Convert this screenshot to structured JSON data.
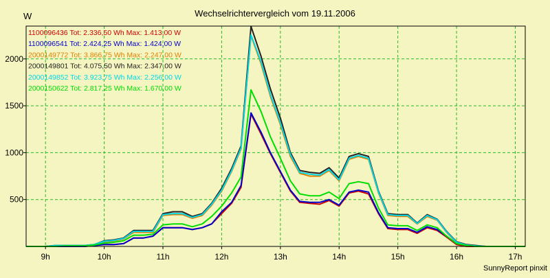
{
  "chart_data": {
    "type": "line",
    "title": "Wechselrichtervergleich vom 19.11.2006",
    "ylabel": "W",
    "xlabel": "",
    "footer": "SunnyReport pinxit",
    "xlim": [
      8.67,
      17.17
    ],
    "ylim": [
      0,
      2350
    ],
    "grid": true,
    "legend_position": "top-left",
    "x_ticks": [
      9,
      10,
      11,
      12,
      13,
      14,
      15,
      16,
      17
    ],
    "x_tick_labels": [
      "9h",
      "10h",
      "11h",
      "12h",
      "13h",
      "14h",
      "15h",
      "16h",
      "17h"
    ],
    "y_ticks": [
      500,
      1000,
      1500,
      2000
    ],
    "y_tick_labels": [
      "500",
      "1000",
      "1500",
      "2000"
    ],
    "x": [
      8.67,
      9.0,
      9.17,
      9.33,
      9.5,
      9.67,
      9.83,
      10.0,
      10.17,
      10.33,
      10.5,
      10.67,
      10.83,
      11.0,
      11.17,
      11.33,
      11.5,
      11.67,
      11.83,
      12.0,
      12.17,
      12.33,
      12.5,
      12.67,
      12.83,
      13.0,
      13.17,
      13.33,
      13.5,
      13.67,
      13.83,
      14.0,
      14.17,
      14.33,
      14.5,
      14.67,
      14.83,
      15.0,
      15.17,
      15.33,
      15.5,
      15.67,
      15.83,
      16.0,
      16.17,
      16.33,
      16.5,
      16.67,
      16.83,
      17.0,
      17.17
    ],
    "series": [
      {
        "name": "1100096436 Tot: 2.336,50 Wh Max: 1.413,00 W",
        "color": "#cc0000",
        "values": [
          0,
          0,
          0,
          0,
          0,
          0,
          10,
          20,
          20,
          30,
          90,
          90,
          110,
          200,
          200,
          200,
          180,
          200,
          240,
          350,
          460,
          630,
          1413,
          1200,
          990,
          790,
          590,
          470,
          460,
          450,
          490,
          430,
          570,
          590,
          560,
          350,
          190,
          180,
          180,
          140,
          200,
          170,
          100,
          20,
          0,
          0,
          0,
          0,
          0,
          0,
          0
        ]
      },
      {
        "name": "1100096541 Tot: 2.424,25 Wh Max: 1.424,00 W",
        "color": "#0000cc",
        "values": [
          0,
          0,
          0,
          0,
          0,
          0,
          10,
          20,
          20,
          30,
          90,
          90,
          110,
          200,
          200,
          200,
          180,
          200,
          240,
          370,
          470,
          650,
          1424,
          1220,
          1000,
          800,
          600,
          480,
          470,
          470,
          500,
          440,
          580,
          600,
          580,
          360,
          200,
          190,
          190,
          150,
          210,
          180,
          110,
          30,
          10,
          0,
          0,
          0,
          0,
          0,
          0
        ]
      },
      {
        "name": "2000149772 Tot: 3.866,75 Wh Max: 2.247,00 W",
        "color": "#e08000",
        "values": [
          0,
          0,
          10,
          10,
          10,
          10,
          20,
          50,
          60,
          80,
          150,
          150,
          150,
          330,
          340,
          340,
          300,
          330,
          440,
          590,
          800,
          1040,
          2247,
          1950,
          1600,
          1300,
          960,
          780,
          750,
          750,
          810,
          700,
          930,
          960,
          930,
          570,
          330,
          320,
          320,
          240,
          320,
          280,
          150,
          40,
          10,
          0,
          0,
          0,
          0,
          0,
          0
        ]
      },
      {
        "name": "2000149801 Tot: 4.075,50 Wh Max: 2.347,00 W",
        "color": "#222222",
        "values": [
          0,
          0,
          10,
          10,
          10,
          10,
          20,
          60,
          70,
          90,
          170,
          170,
          170,
          350,
          370,
          370,
          320,
          350,
          460,
          620,
          830,
          1070,
          2347,
          2030,
          1680,
          1370,
          1000,
          810,
          790,
          780,
          840,
          730,
          960,
          990,
          960,
          590,
          350,
          340,
          340,
          250,
          340,
          290,
          160,
          50,
          20,
          10,
          0,
          0,
          0,
          0,
          0
        ]
      },
      {
        "name": "2000149852 Tot: 3.923,75 Wh Max: 2.256,00 W",
        "color": "#00d8e8",
        "values": [
          0,
          0,
          10,
          10,
          10,
          10,
          20,
          55,
          65,
          85,
          160,
          160,
          160,
          340,
          350,
          350,
          310,
          340,
          450,
          600,
          810,
          1050,
          2256,
          1970,
          1620,
          1320,
          980,
          790,
          770,
          760,
          820,
          710,
          940,
          970,
          940,
          580,
          340,
          330,
          330,
          245,
          330,
          285,
          155,
          45,
          15,
          5,
          0,
          0,
          0,
          0,
          0
        ]
      },
      {
        "name": "2000150622 Tot: 2.817,25 Wh Max: 1.670,00 W",
        "color": "#00dd00",
        "values": [
          0,
          0,
          0,
          5,
          5,
          5,
          15,
          35,
          45,
          60,
          120,
          120,
          130,
          230,
          240,
          240,
          210,
          240,
          320,
          430,
          570,
          740,
          1670,
          1440,
          1170,
          940,
          700,
          560,
          540,
          540,
          580,
          510,
          670,
          690,
          670,
          410,
          230,
          220,
          220,
          170,
          230,
          200,
          110,
          30,
          10,
          0,
          0,
          0,
          0,
          0,
          0
        ]
      }
    ]
  }
}
